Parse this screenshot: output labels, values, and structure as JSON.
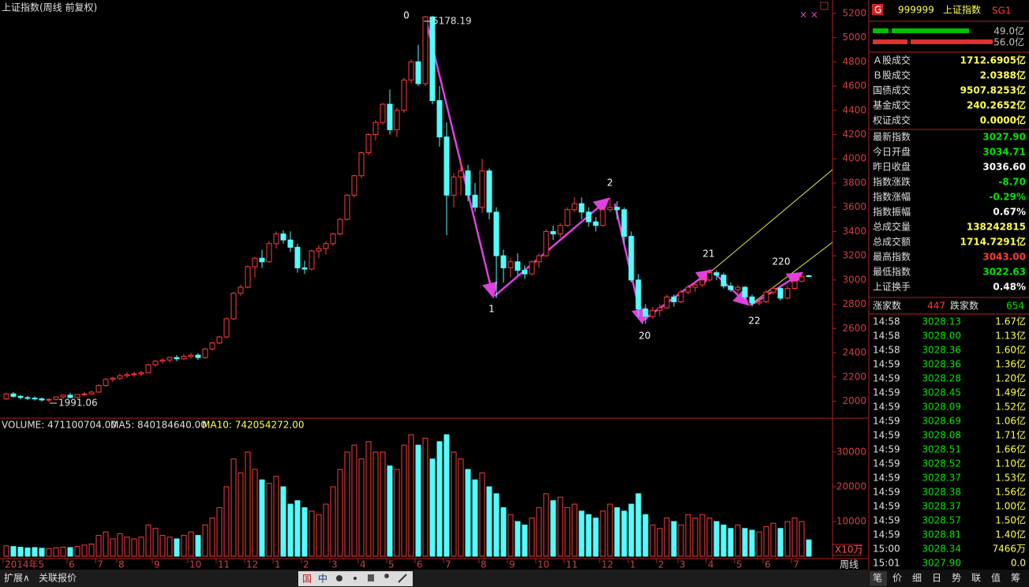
{
  "chart_data": {
    "type": "candlestick",
    "title": "上证指数(周线 前复权)",
    "categories": [
      "2014年5",
      null,
      null,
      null,
      null,
      null,
      null,
      null,
      null,
      "6",
      null,
      null,
      null,
      "7",
      null,
      null,
      "8",
      null,
      null,
      null,
      null,
      "9",
      null,
      null,
      null,
      null,
      "10",
      null,
      null,
      null,
      "11",
      null,
      null,
      null,
      "12",
      null,
      null,
      null,
      "1",
      null,
      null,
      null,
      "2",
      null,
      null,
      null,
      "3",
      null,
      null,
      null,
      "4",
      null,
      null,
      null,
      "5",
      null,
      null,
      null,
      "6",
      null,
      null,
      null,
      "7",
      null,
      null,
      null,
      null,
      "8",
      null,
      null,
      null,
      "9",
      null,
      null,
      null,
      "10",
      null,
      null,
      null,
      "11",
      null,
      null,
      null,
      null,
      "12",
      null,
      null,
      null,
      "1",
      null,
      null,
      null,
      "2",
      null,
      null,
      "3",
      null,
      null,
      null,
      "4",
      null,
      null,
      null,
      "5",
      null,
      null,
      null,
      "6",
      null,
      null,
      null,
      "7",
      null,
      null
    ],
    "candles": [
      [
        2020,
        2070,
        2010,
        2060
      ],
      [
        2060,
        2075,
        2030,
        2040
      ],
      [
        2040,
        2050,
        2015,
        2030
      ],
      [
        2030,
        2045,
        2010,
        2025
      ],
      [
        2025,
        2040,
        2005,
        2020
      ],
      [
        2020,
        2030,
        1998,
        2010
      ],
      [
        2010,
        2025,
        1991,
        2015
      ],
      [
        2015,
        2040,
        2005,
        2035
      ],
      [
        2035,
        2055,
        2020,
        2050
      ],
      [
        2050,
        2070,
        2025,
        2030
      ],
      [
        2030,
        2060,
        2020,
        2055
      ],
      [
        2055,
        2075,
        2040,
        2060
      ],
      [
        2060,
        2085,
        2050,
        2075
      ],
      [
        2075,
        2140,
        2070,
        2130
      ],
      [
        2130,
        2190,
        2120,
        2180
      ],
      [
        2180,
        2200,
        2160,
        2190
      ],
      [
        2190,
        2230,
        2175,
        2210
      ],
      [
        2210,
        2240,
        2195,
        2220
      ],
      [
        2220,
        2245,
        2200,
        2225
      ],
      [
        2225,
        2250,
        2210,
        2235
      ],
      [
        2235,
        2310,
        2230,
        2300
      ],
      [
        2300,
        2340,
        2285,
        2330
      ],
      [
        2330,
        2355,
        2310,
        2340
      ],
      [
        2340,
        2370,
        2320,
        2360
      ],
      [
        2360,
        2380,
        2330,
        2350
      ],
      [
        2350,
        2390,
        2340,
        2370
      ],
      [
        2370,
        2400,
        2350,
        2380
      ],
      [
        2380,
        2395,
        2340,
        2360
      ],
      [
        2360,
        2440,
        2350,
        2430
      ],
      [
        2430,
        2490,
        2420,
        2480
      ],
      [
        2480,
        2540,
        2470,
        2530
      ],
      [
        2530,
        2690,
        2520,
        2680
      ],
      [
        2680,
        2900,
        2670,
        2890
      ],
      [
        2890,
        2960,
        2870,
        2940
      ],
      [
        2940,
        3120,
        2930,
        3110
      ],
      [
        3110,
        3190,
        3020,
        3180
      ],
      [
        3180,
        3250,
        3100,
        3150
      ],
      [
        3150,
        3320,
        3140,
        3300
      ],
      [
        3300,
        3400,
        3260,
        3380
      ],
      [
        3380,
        3410,
        3300,
        3330
      ],
      [
        3330,
        3400,
        3230,
        3270
      ],
      [
        3270,
        3300,
        3060,
        3100
      ],
      [
        3100,
        3160,
        3050,
        3090
      ],
      [
        3090,
        3250,
        3080,
        3240
      ],
      [
        3240,
        3290,
        3180,
        3260
      ],
      [
        3260,
        3320,
        3210,
        3300
      ],
      [
        3300,
        3390,
        3280,
        3380
      ],
      [
        3380,
        3510,
        3370,
        3500
      ],
      [
        3500,
        3710,
        3490,
        3700
      ],
      [
        3700,
        3870,
        3680,
        3860
      ],
      [
        3860,
        4060,
        3840,
        4050
      ],
      [
        4050,
        4210,
        4030,
        4200
      ],
      [
        4200,
        4320,
        4150,
        4300
      ],
      [
        4300,
        4460,
        4280,
        4450
      ],
      [
        4450,
        4570,
        4200,
        4240
      ],
      [
        4240,
        4420,
        4180,
        4400
      ],
      [
        4400,
        4670,
        4380,
        4650
      ],
      [
        4650,
        4820,
        4620,
        4800
      ],
      [
        4800,
        4940,
        4600,
        4620
      ],
      [
        4620,
        5178,
        4600,
        5170
      ],
      [
        5170,
        5180,
        4450,
        4480
      ],
      [
        4480,
        4600,
        4100,
        4180
      ],
      [
        4180,
        4300,
        3370,
        3700
      ],
      [
        3700,
        3880,
        3600,
        3850
      ],
      [
        3850,
        3990,
        3700,
        3900
      ],
      [
        3900,
        3950,
        3650,
        3700
      ],
      [
        3700,
        3800,
        3560,
        3600
      ],
      [
        3600,
        4000,
        3550,
        3900
      ],
      [
        3900,
        3920,
        3500,
        3560
      ],
      [
        3560,
        3600,
        2850,
        3200
      ],
      [
        3200,
        3250,
        2980,
        3100
      ],
      [
        3100,
        3180,
        3020,
        3150
      ],
      [
        3150,
        3220,
        3040,
        3080
      ],
      [
        3080,
        3120,
        3010,
        3050
      ],
      [
        3050,
        3160,
        3040,
        3150
      ],
      [
        3150,
        3220,
        3100,
        3200
      ],
      [
        3200,
        3420,
        3190,
        3400
      ],
      [
        3400,
        3450,
        3330,
        3380
      ],
      [
        3380,
        3470,
        3350,
        3450
      ],
      [
        3450,
        3600,
        3440,
        3580
      ],
      [
        3580,
        3680,
        3560,
        3630
      ],
      [
        3630,
        3680,
        3500,
        3560
      ],
      [
        3560,
        3600,
        3440,
        3480
      ],
      [
        3480,
        3520,
        3400,
        3450
      ],
      [
        3450,
        3600,
        3440,
        3580
      ],
      [
        3580,
        3680,
        3560,
        3600
      ],
      [
        3600,
        3650,
        3500,
        3580
      ],
      [
        3580,
        3600,
        3300,
        3360
      ],
      [
        3360,
        3400,
        2980,
        3000
      ],
      [
        3000,
        3050,
        2700,
        2760
      ],
      [
        2760,
        2800,
        2638,
        2700
      ],
      [
        2700,
        2780,
        2680,
        2750
      ],
      [
        2750,
        2800,
        2700,
        2770
      ],
      [
        2770,
        2880,
        2760,
        2860
      ],
      [
        2860,
        2880,
        2780,
        2820
      ],
      [
        2820,
        2920,
        2810,
        2900
      ],
      [
        2900,
        2960,
        2880,
        2940
      ],
      [
        2940,
        2980,
        2900,
        2960
      ],
      [
        2960,
        3020,
        2940,
        3000
      ],
      [
        3000,
        3090,
        2980,
        3060
      ],
      [
        3060,
        3080,
        3000,
        3040
      ],
      [
        3040,
        3060,
        2930,
        2950
      ],
      [
        2950,
        2980,
        2900,
        2920
      ],
      [
        2920,
        2960,
        2890,
        2940
      ],
      [
        2940,
        2950,
        2840,
        2860
      ],
      [
        2860,
        2880,
        2780,
        2810
      ],
      [
        2810,
        2850,
        2790,
        2820
      ],
      [
        2820,
        2920,
        2810,
        2900
      ],
      [
        2900,
        2950,
        2880,
        2930
      ],
      [
        2930,
        2940,
        2830,
        2850
      ],
      [
        2850,
        2950,
        2840,
        2930
      ],
      [
        2930,
        3010,
        2920,
        2990
      ],
      [
        2990,
        3050,
        2980,
        3030
      ],
      [
        3035,
        3043,
        3022,
        3028
      ]
    ],
    "up_color": "#ff3c3c",
    "down_color": "#54fcfc",
    "ylim": [
      1860,
      5310
    ],
    "yticks": [
      2000,
      2200,
      2400,
      2600,
      2800,
      3000,
      3200,
      3400,
      3600,
      3800,
      4000,
      4200,
      4400,
      4600,
      4800,
      5000,
      5200
    ],
    "high_label": 5178.19,
    "low_label": 1991.06,
    "wave_labels": [
      "0",
      "1",
      "2",
      "20",
      "21",
      "22",
      "220"
    ],
    "volume": {
      "header": [
        "VOLUME: 471100704.00",
        "MA5: 840184640.00",
        "MA10: 742054272.00"
      ],
      "values": [
        3000,
        2800,
        2600,
        2400,
        2500,
        2300,
        2200,
        2400,
        2600,
        2500,
        2800,
        3200,
        3500,
        6000,
        7000,
        5000,
        6500,
        5500,
        5000,
        5500,
        9000,
        8000,
        6000,
        5500,
        5000,
        6000,
        7000,
        6000,
        9000,
        11000,
        14000,
        20000,
        28000,
        24000,
        30000,
        25000,
        22000,
        21000,
        23000,
        20000,
        15000,
        16000,
        14000,
        13000,
        12000,
        15000,
        20000,
        25000,
        30000,
        32000,
        28000,
        33000,
        30000,
        30000,
        26000,
        25000,
        32000,
        35000,
        32000,
        34000,
        28000,
        33000,
        35000,
        30000,
        28000,
        25000,
        22000,
        24000,
        20000,
        18000,
        14000,
        12000,
        10000,
        9000,
        11000,
        14000,
        18000,
        16000,
        17000,
        14000,
        15000,
        13000,
        12000,
        11000,
        13000,
        15000,
        14000,
        13000,
        15000,
        18000,
        12000,
        9000,
        8000,
        11000,
        10000,
        9000,
        12000,
        11000,
        12000,
        11000,
        10000,
        9000,
        8000,
        9000,
        8000,
        7500,
        7000,
        8500,
        9500,
        8000,
        10000,
        11000,
        10000,
        4711
      ],
      "ylim": [
        0,
        37500
      ],
      "yticks": [
        10000,
        20000,
        30000
      ],
      "unit": "X10万"
    }
  },
  "panel": {
    "badge": "G",
    "code": "999999",
    "name": "上证指数",
    "tag": "SG1",
    "buy": "49.0亿",
    "sell": "56.0亿",
    "stats": [
      {
        "label": "Ａ股成交",
        "value": "1712.6905亿",
        "color": "#ffff54"
      },
      {
        "label": "Ｂ股成交",
        "value": "2.0388亿",
        "color": "#ffff54"
      },
      {
        "label": "国债成交",
        "value": "9507.8253亿",
        "color": "#ffff54"
      },
      {
        "label": "基金成交",
        "value": "240.2652亿",
        "color": "#ffff54"
      },
      {
        "label": "权证成交",
        "value": "0.0000亿",
        "color": "#ffff54"
      },
      {
        "label": "最新指数",
        "value": "3027.90",
        "color": "#00e600"
      },
      {
        "label": "今日开盘",
        "value": "3034.71",
        "color": "#00e600"
      },
      {
        "label": "昨日收盘",
        "value": "3036.60",
        "color": "#ffffff"
      },
      {
        "label": "指数涨跌",
        "value": "-8.70",
        "color": "#00e600"
      },
      {
        "label": "指数涨幅",
        "value": "-0.29%",
        "color": "#00e600"
      },
      {
        "label": "指数振幅",
        "value": "0.67%",
        "color": "#ffffff"
      },
      {
        "label": "总成交量",
        "value": "138242815",
        "color": "#ffff54"
      },
      {
        "label": "总成交额",
        "value": "1714.7291亿",
        "color": "#ffff54"
      },
      {
        "label": "最高指数",
        "value": "3043.00",
        "color": "#ff3c3c"
      },
      {
        "label": "最低指数",
        "value": "3022.63",
        "color": "#00e600"
      },
      {
        "label": "上证换手",
        "value": "0.48%",
        "color": "#ffffff"
      }
    ],
    "breadth": {
      "up_label": "涨家数",
      "up": 447,
      "down_label": "跌家数",
      "down": 654
    },
    "ticks": [
      [
        "14:58",
        "3028.13",
        "1.67亿"
      ],
      [
        "14:58",
        "3028.00",
        "1.13亿"
      ],
      [
        "14:58",
        "3028.36",
        "1.60亿"
      ],
      [
        "14:59",
        "3028.36",
        "1.36亿"
      ],
      [
        "14:59",
        "3028.28",
        "1.20亿"
      ],
      [
        "14:59",
        "3028.45",
        "1.49亿"
      ],
      [
        "14:59",
        "3028.09",
        "1.52亿"
      ],
      [
        "14:59",
        "3028.69",
        "1.06亿"
      ],
      [
        "14:59",
        "3028.08",
        "1.71亿"
      ],
      [
        "14:59",
        "3028.51",
        "1.66亿"
      ],
      [
        "14:59",
        "3028.52",
        "1.10亿"
      ],
      [
        "14:59",
        "3028.37",
        "1.53亿"
      ],
      [
        "14:59",
        "3028.38",
        "1.56亿"
      ],
      [
        "14:59",
        "3028.37",
        "1.00亿"
      ],
      [
        "14:59",
        "3028.57",
        "1.50亿"
      ],
      [
        "14:59",
        "3028.81",
        "1.40亿"
      ],
      [
        "15:00",
        "3028.34",
        "7466万"
      ],
      [
        "15:01",
        "3027.90",
        "0.0"
      ]
    ],
    "tabs": [
      "笔",
      "价",
      "细",
      "日",
      "势",
      "联",
      "值",
      "筹"
    ]
  },
  "bottom": {
    "left": [
      "扩展∧",
      "关联报价"
    ],
    "toolbar": [
      "国",
      "中"
    ],
    "period": "周线"
  }
}
